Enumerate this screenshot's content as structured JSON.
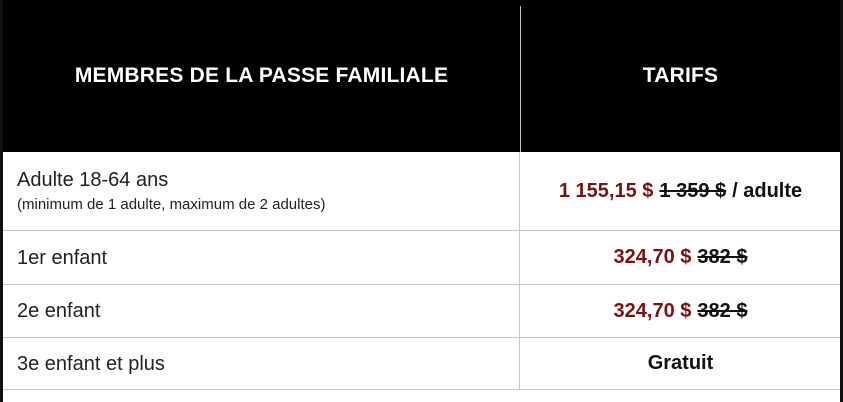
{
  "header": {
    "members_label": "MEMBRES DE LA PASSE FAMILIALE",
    "tarifs_label": "TARIFS"
  },
  "rows": [
    {
      "label": "Adulte 18-64 ans",
      "sublabel": "(minimum de 1 adulte, maximum de 2 adultes)",
      "price_new": "1 155,15 $",
      "price_old": "1 359 $",
      "price_suffix": "/ adulte"
    },
    {
      "label": "1er enfant",
      "price_new": "324,70 $",
      "price_old": "382 $"
    },
    {
      "label": "2e enfant",
      "price_new": "324,70 $",
      "price_old": "382 $"
    },
    {
      "label": "3e enfant et plus",
      "price_text": "Gratuit"
    }
  ],
  "colors": {
    "header_bg": "#000000",
    "header_text": "#ffffff",
    "price_accent": "#7a1212",
    "border": "#c8c8c8"
  }
}
